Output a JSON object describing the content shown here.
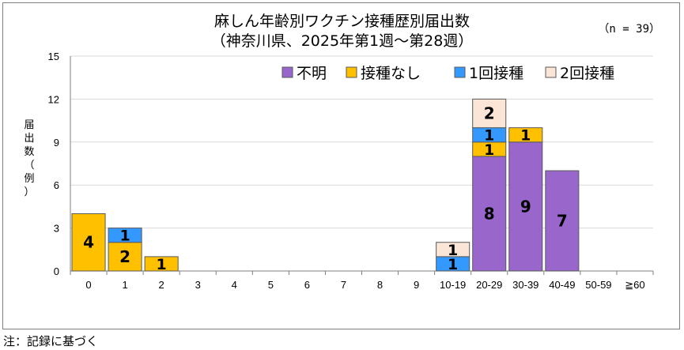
{
  "title_line1": "麻しん年齢別ワクチン接種歴別届出数",
  "title_line2": "（神奈川県、2025年第1週～第28週）",
  "n_label": "（n = 39）",
  "note": "注：記録に基づく",
  "chart_data": {
    "type": "bar",
    "stacked": true,
    "categories": [
      "0",
      "1",
      "2",
      "3",
      "4",
      "5",
      "6",
      "7",
      "8",
      "9",
      "10-19",
      "20-29",
      "30-39",
      "40-49",
      "50-59",
      "≧60"
    ],
    "ylabel": "届出数（例）",
    "ylim": [
      0,
      15
    ],
    "yticks": [
      0,
      3,
      6,
      9,
      12,
      15
    ],
    "grid": true,
    "legend_position": "top-right",
    "series": [
      {
        "name": "不明",
        "color": "#9966cc",
        "values": [
          0,
          0,
          0,
          0,
          0,
          0,
          0,
          0,
          0,
          0,
          0,
          8,
          9,
          7,
          0,
          0
        ]
      },
      {
        "name": "接種なし",
        "color": "#ffc000",
        "values": [
          4,
          2,
          1,
          0,
          0,
          0,
          0,
          0,
          0,
          0,
          0,
          1,
          1,
          0,
          0,
          0
        ]
      },
      {
        "name": "1回接種",
        "color": "#3399ff",
        "values": [
          0,
          1,
          0,
          0,
          0,
          0,
          0,
          0,
          0,
          0,
          1,
          1,
          0,
          0,
          0,
          0
        ]
      },
      {
        "name": "2回接種",
        "color": "#fbe5d6",
        "values": [
          0,
          0,
          0,
          0,
          0,
          0,
          0,
          0,
          0,
          0,
          1,
          2,
          0,
          0,
          0,
          0
        ]
      }
    ]
  }
}
